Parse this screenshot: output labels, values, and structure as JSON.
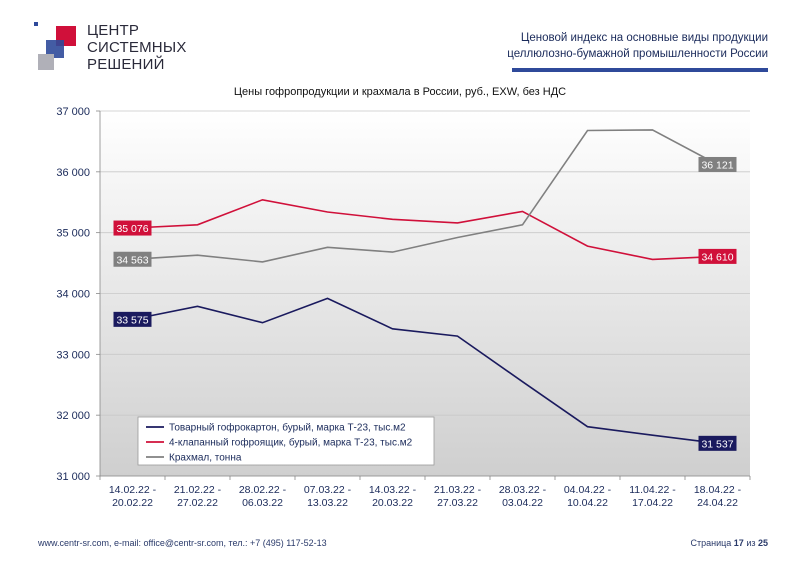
{
  "logo": {
    "line1": "ЦЕНТР",
    "line2": "СИСТЕМНЫХ",
    "line3": "РЕШЕНИЙ"
  },
  "header": {
    "line1": "Ценовой индекс на основные виды продукции",
    "line2": "целлюлозно-бумажной промышленности России"
  },
  "footer": {
    "contacts": "www.centr-sr.com, e-mail: office@centr-sr.com, тел.: +7 (495) 117-52-13",
    "page_label": "Страница",
    "page_num": "17",
    "of_label": "из",
    "page_total": "25"
  },
  "colors": {
    "series1": "#1a1a5e",
    "series2": "#d0103a",
    "series3": "#808080",
    "header_bar": "#2f4a9a"
  },
  "chart_data": {
    "type": "line",
    "title": "Цены гофропродукции и крахмала в России, руб., EXW, без НДС",
    "xlabel": "",
    "ylabel": "",
    "ylim": [
      31000,
      37000
    ],
    "yticks": [
      31000,
      32000,
      33000,
      34000,
      35000,
      36000,
      37000
    ],
    "ytick_labels": [
      "31 000",
      "32 000",
      "33 000",
      "34 000",
      "35 000",
      "36 000",
      "37 000"
    ],
    "categories": [
      [
        "14.02.22 -",
        "20.02.22"
      ],
      [
        "21.02.22 -",
        "27.02.22"
      ],
      [
        "28.02.22 -",
        "06.03.22"
      ],
      [
        "07.03.22 -",
        "13.03.22"
      ],
      [
        "14.03.22 -",
        "20.03.22"
      ],
      [
        "21.03.22 -",
        "27.03.22"
      ],
      [
        "28.03.22 -",
        "03.04.22"
      ],
      [
        "04.04.22 -",
        "10.04.22"
      ],
      [
        "11.04.22 -",
        "17.04.22"
      ],
      [
        "18.04.22 -",
        "24.04.22"
      ]
    ],
    "legend_position": "bottom-left",
    "series": [
      {
        "name": "Товарный гофрокартон, бурый, марка Т-23, тыс.м2",
        "color": "#1a1a5e",
        "values": [
          33575,
          33790,
          33520,
          33920,
          33420,
          33300,
          32550,
          31810,
          31670,
          31537
        ],
        "start_label": "33 575",
        "end_label": "31 537"
      },
      {
        "name": "4-клапанный гофроящик, бурый, марка Т-23, тыс.м2",
        "color": "#d0103a",
        "values": [
          35076,
          35130,
          35540,
          35340,
          35220,
          35160,
          35350,
          34780,
          34560,
          34610
        ],
        "start_label": "35 076",
        "end_label": "34 610"
      },
      {
        "name": "Крахмал, тонна",
        "color": "#808080",
        "values": [
          34563,
          34630,
          34520,
          34760,
          34680,
          34920,
          35130,
          36680,
          36690,
          36121
        ],
        "start_label": "34 563",
        "end_label": "36 121"
      }
    ]
  }
}
